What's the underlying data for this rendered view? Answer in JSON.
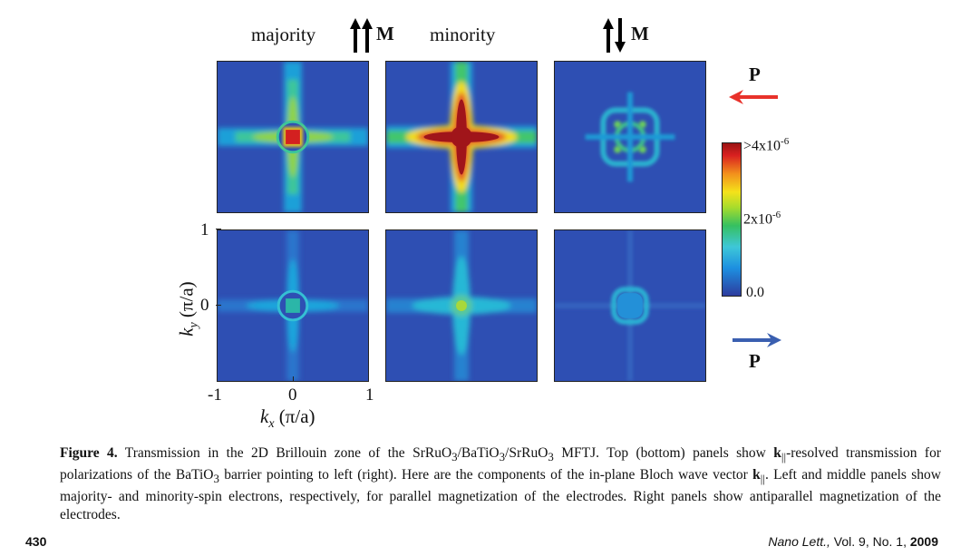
{
  "columns": {
    "left": "majority",
    "middle": "minority"
  },
  "magnetization": {
    "parallel_label": "M",
    "antiparallel_label": "M"
  },
  "polarization": {
    "top_label": "P",
    "bottom_label": "P",
    "top_arrow_color": "#e8322b",
    "bottom_arrow_color": "#3a5fb0"
  },
  "axes": {
    "x_label_sym": "k",
    "x_label_sub": "x",
    "x_label_unit": "(π/a)",
    "y_label_sym": "k",
    "y_label_sub": "y",
    "y_label_unit": "(π/a)",
    "x_ticks": [
      "-1",
      "0",
      "1"
    ],
    "y_ticks": [
      "1",
      "0"
    ]
  },
  "colorbar": {
    "max_label_base": ">4x10",
    "max_label_exp": "-6",
    "mid_label_base": "2x10",
    "mid_label_exp": "-6",
    "min_label": "0.0",
    "stops": [
      "#2d3c9e",
      "#1d8fe0",
      "#3ec7d8",
      "#36c060",
      "#a8dc2c",
      "#f4e21a",
      "#f2901c",
      "#d92020",
      "#9a1414"
    ]
  },
  "caption": {
    "figure_label": "Figure 4.",
    "text_1": " Transmission in the 2D Brillouin zone of the SrRuO",
    "sub_1": "3",
    "text_2": "/BaTiO",
    "sub_2": "3",
    "text_3": "/SrRuO",
    "sub_3": "3",
    "text_4": " MFTJ. Top (bottom) panels show ",
    "k_bold": "k",
    "k_sub": "||",
    "text_5": "-resolved transmission for polarizations of the BaTiO",
    "sub_4": "3",
    "text_6": " barrier pointing to left (right). Here are the components of the in-plane Bloch wave vector ",
    "k2_bold": "k",
    "k2_sub": "||",
    "text_7": ". Left and middle panels show majority- and minority-spin electrons, respectively, for parallel magnetization of the electrodes. Right panels show antiparallel magnetization of the electrodes."
  },
  "footer": {
    "page_number": "430",
    "journal": "Nano Lett.,",
    "volume": " Vol. 9, No. 1, ",
    "year": "2009"
  }
}
